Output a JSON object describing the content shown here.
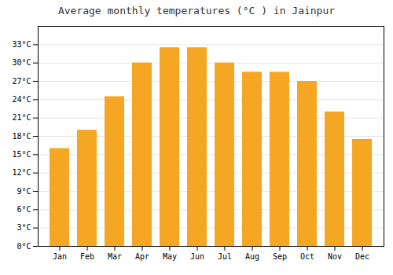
{
  "chart_data": {
    "type": "bar",
    "title": "Average monthly temperatures (°C ) in Jainpur",
    "categories": [
      "Jan",
      "Feb",
      "Mar",
      "Apr",
      "May",
      "Jun",
      "Jul",
      "Aug",
      "Sep",
      "Oct",
      "Nov",
      "Dec"
    ],
    "values": [
      16,
      19,
      24.5,
      30,
      32.5,
      32.5,
      30,
      28.5,
      28.5,
      27,
      22,
      17.5
    ],
    "color": "#F5A623",
    "ylim": [
      0,
      36
    ],
    "yticks": [
      {
        "value": 0,
        "label": "0°C"
      },
      {
        "value": 3,
        "label": "3°C"
      },
      {
        "value": 6,
        "label": "6°C"
      },
      {
        "value": 9,
        "label": "9°C"
      },
      {
        "value": 12,
        "label": "12°C"
      },
      {
        "value": 15,
        "label": "15°C"
      },
      {
        "value": 18,
        "label": "18°C"
      },
      {
        "value": 21,
        "label": "21°C"
      },
      {
        "value": 24,
        "label": "24°C"
      },
      {
        "value": 27,
        "label": "27°C"
      },
      {
        "value": 30,
        "label": "30°C"
      },
      {
        "value": 33,
        "label": "33°C"
      }
    ],
    "grid": true
  }
}
